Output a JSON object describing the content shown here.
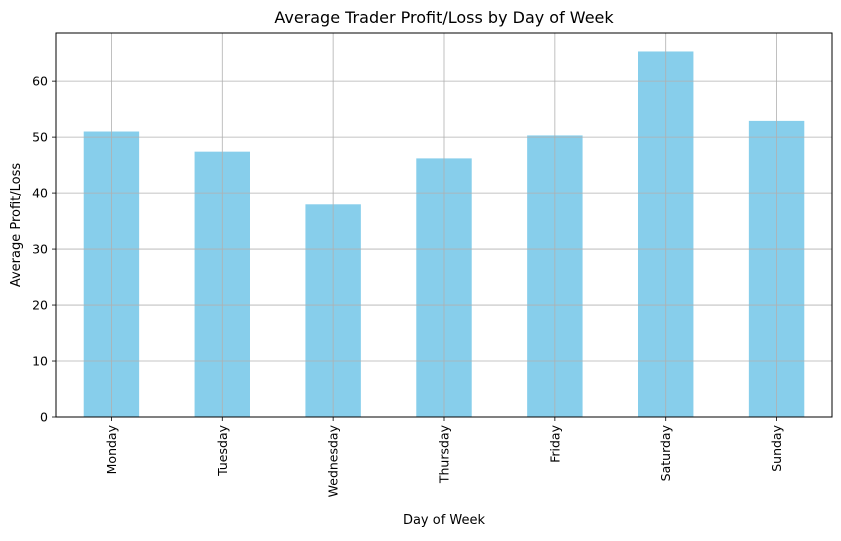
{
  "chart_data": {
    "type": "bar",
    "title": "Average Trader Profit/Loss by Day of Week",
    "xlabel": "Day of Week",
    "ylabel": "Average Profit/Loss",
    "categories": [
      "Monday",
      "Tuesday",
      "Wednesday",
      "Thursday",
      "Friday",
      "Saturday",
      "Sunday"
    ],
    "values": [
      51.0,
      47.4,
      38.0,
      46.2,
      50.3,
      65.3,
      52.9
    ],
    "ylim": [
      0,
      68.6
    ],
    "yticks": [
      0,
      10,
      20,
      30,
      40,
      50,
      60
    ],
    "grid": true,
    "bar_color": "#87ceeb",
    "grid_color": "#b0b0b0"
  }
}
